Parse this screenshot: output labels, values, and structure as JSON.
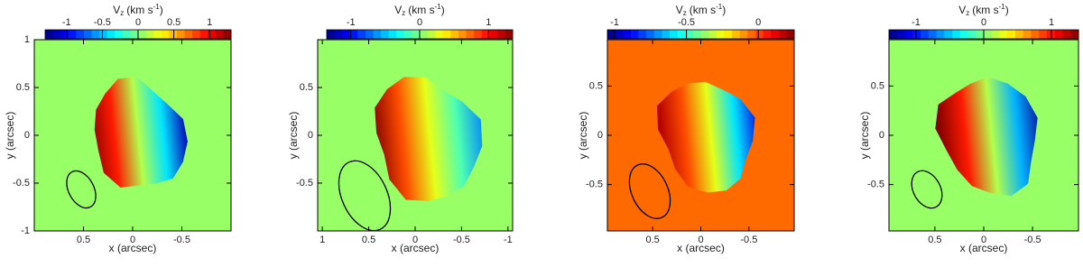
{
  "chart_data": [
    {
      "type": "velocity-map",
      "background": "#99ff66",
      "colorbar_label": {
        "symbol": "V",
        "sub": "z",
        "unit": "(km s",
        "sup": "-1",
        "close": ")"
      },
      "clim": [
        -1.3,
        1.3
      ],
      "cticks": [
        -1,
        -0.5,
        0,
        0.5,
        1
      ],
      "xlabel": "x (arcsec)",
      "ylabel": "y (arcsec)",
      "xlim": [
        1,
        -1
      ],
      "xticks": [
        0.5,
        0,
        -0.5
      ],
      "ylim": [
        -1,
        1
      ],
      "yticks": [
        -1,
        -0.5,
        0,
        0.5,
        1
      ]
    },
    {
      "type": "velocity-map",
      "background": "#99ff66",
      "colorbar_label": {
        "symbol": "V",
        "sub": "z",
        "unit": "(km s",
        "sup": "-1",
        "close": ")"
      },
      "clim": [
        -1.35,
        1.35
      ],
      "cticks": [
        -1,
        0,
        1
      ],
      "xlabel": "x (arcsec)",
      "ylabel": "y (arcsec)",
      "xlim": [
        1.05,
        -1.05
      ],
      "xticks": [
        1,
        0.5,
        0,
        -0.5,
        -1
      ],
      "ylim": [
        -1,
        1
      ],
      "yticks": [
        -0.5,
        0,
        0.5
      ]
    },
    {
      "type": "velocity-map",
      "background": "#ff6a00",
      "colorbar_label": {
        "symbol": "V",
        "sub": "z",
        "unit": "(km s",
        "sup": "-1",
        "close": ")"
      },
      "clim": [
        -1.05,
        0.25
      ],
      "cticks": [
        -1,
        -0.5,
        0
      ],
      "xlabel": "x (arcsec)",
      "ylabel": "y (arcsec)",
      "xlim": [
        0.97,
        -0.97
      ],
      "xticks": [
        0.5,
        0,
        -0.5
      ],
      "ylim": [
        -0.97,
        0.97
      ],
      "yticks": [
        -0.5,
        0,
        0.5
      ]
    },
    {
      "type": "velocity-map",
      "background": "#99ff66",
      "colorbar_label": {
        "symbol": "V",
        "sub": "z",
        "unit": "(km s",
        "sup": "-1",
        "close": ")"
      },
      "clim": [
        -1.4,
        1.4
      ],
      "cticks": [
        -1,
        0,
        1
      ],
      "xlabel": "x (arcsec)",
      "ylabel": "y (arcsec)",
      "xlim": [
        0.97,
        -0.97
      ],
      "xticks": [
        0.5,
        0,
        -0.5
      ],
      "ylim": [
        -0.97,
        0.97
      ],
      "yticks": [
        -0.5,
        0,
        0.5
      ]
    }
  ]
}
